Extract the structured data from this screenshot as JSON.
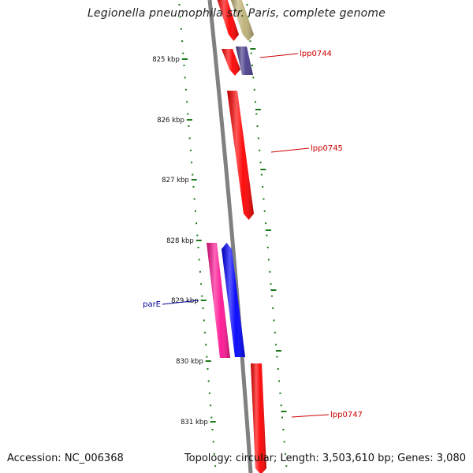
{
  "title": "Legionella pneumophila str. Paris, complete genome",
  "footer": {
    "accession": "Accession: NC_006368",
    "summary": "Topology: circular; Length: 3,503,610 bp; Genes: 3,080"
  },
  "colors": {
    "backbone": "#808080",
    "scale_ticks": "#1a7a1a",
    "label_red": "#cc0000",
    "label_blue": "#000099"
  },
  "scale": {
    "labels": [
      "825 kbp",
      "826 kbp",
      "827 kbp",
      "828 kbp",
      "829 kbp",
      "830 kbp",
      "831 kbp"
    ]
  },
  "genes": [
    {
      "id": "gene-red-top",
      "label": "",
      "color": "#ff0000"
    },
    {
      "id": "gene-khaki-top",
      "label": "",
      "color": "#bdb076"
    },
    {
      "id": "gene-red-small",
      "label": "",
      "color": "#ff0000"
    },
    {
      "id": "gene-purple",
      "label": "lpp0744",
      "color": "#483d8b"
    },
    {
      "id": "gene-lpp0745",
      "label": "lpp0745",
      "color": "#ff0000"
    },
    {
      "id": "gene-pink",
      "label": "",
      "color": "#ff1493"
    },
    {
      "id": "gene-parE",
      "label": "parE",
      "color": "#0000ff"
    },
    {
      "id": "gene-lpp0747",
      "label": "lpp0747",
      "color": "#ff0000"
    }
  ]
}
